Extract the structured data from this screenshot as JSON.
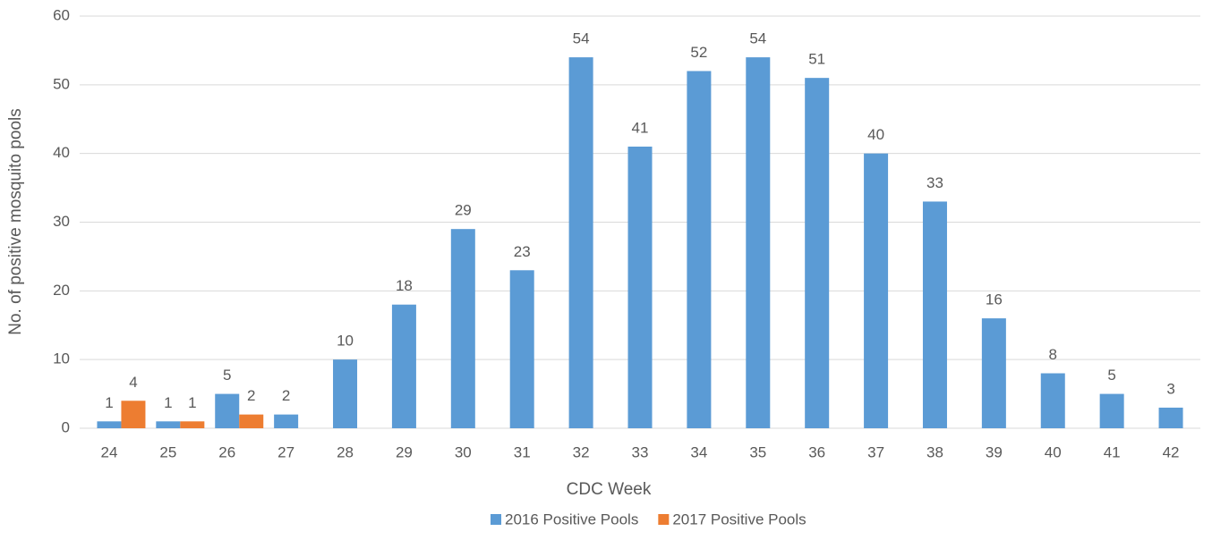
{
  "chart_data": {
    "type": "bar",
    "x_label": "CDC Week",
    "y_label": "No. of positive mosquito pools",
    "categories": [
      "24",
      "25",
      "26",
      "27",
      "28",
      "29",
      "30",
      "31",
      "32",
      "33",
      "34",
      "35",
      "36",
      "37",
      "38",
      "39",
      "40",
      "41",
      "42"
    ],
    "series": [
      {
        "name": "2016 Positive Pools",
        "color": "#5b9bd5",
        "values": [
          1,
          1,
          5,
          2,
          10,
          18,
          29,
          23,
          54,
          41,
          52,
          54,
          51,
          40,
          33,
          16,
          8,
          5,
          3
        ]
      },
      {
        "name": "2017 Positive Pools",
        "color": "#ed7d31",
        "values": [
          4,
          1,
          2,
          null,
          null,
          null,
          null,
          null,
          null,
          null,
          null,
          null,
          null,
          null,
          null,
          null,
          null,
          null,
          null
        ]
      }
    ],
    "ylim": [
      0,
      60
    ],
    "yticks": [
      0,
      10,
      20,
      30,
      40,
      50,
      60
    ],
    "grid": true,
    "legend": "bottom"
  }
}
